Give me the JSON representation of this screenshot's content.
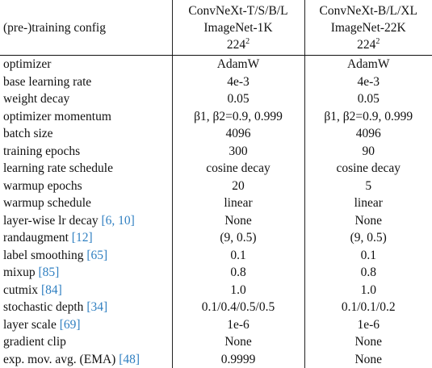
{
  "header": {
    "config_label": "(pre-)training config",
    "columns": [
      {
        "line1": "ConvNeXt-T/S/B/L",
        "line2": "ImageNet-1K",
        "res_base": "224",
        "res_exp": "2"
      },
      {
        "line1": "ConvNeXt-B/L/XL",
        "line2": "ImageNet-22K",
        "res_base": "224",
        "res_exp": "2"
      }
    ]
  },
  "rows": [
    {
      "name": "optimizer",
      "cite": "",
      "v1": "AdamW",
      "v2": "AdamW"
    },
    {
      "name": "base learning rate",
      "cite": "",
      "v1": "4e-3",
      "v2": "4e-3"
    },
    {
      "name": "weight decay",
      "cite": "",
      "v1": "0.05",
      "v2": "0.05"
    },
    {
      "name": "optimizer momentum",
      "cite": "",
      "v1": "β1, β2=0.9, 0.999",
      "v2": "β1, β2=0.9, 0.999"
    },
    {
      "name": "batch size",
      "cite": "",
      "v1": "4096",
      "v2": "4096"
    },
    {
      "name": "training epochs",
      "cite": "",
      "v1": "300",
      "v2": "90"
    },
    {
      "name": "learning rate schedule",
      "cite": "",
      "v1": "cosine decay",
      "v2": "cosine decay"
    },
    {
      "name": "warmup epochs",
      "cite": "",
      "v1": "20",
      "v2": "5"
    },
    {
      "name": "warmup schedule",
      "cite": "",
      "v1": "linear",
      "v2": "linear"
    },
    {
      "name": "layer-wise lr decay ",
      "cite": "[6, 10]",
      "v1": "None",
      "v2": "None"
    },
    {
      "name": "randaugment ",
      "cite": "[12]",
      "v1": "(9, 0.5)",
      "v2": "(9, 0.5)"
    },
    {
      "name": "label smoothing ",
      "cite": "[65]",
      "v1": "0.1",
      "v2": "0.1"
    },
    {
      "name": "mixup ",
      "cite": "[85]",
      "v1": "0.8",
      "v2": "0.8"
    },
    {
      "name": "cutmix ",
      "cite": "[84]",
      "v1": "1.0",
      "v2": "1.0"
    },
    {
      "name": "stochastic depth ",
      "cite": "[34]",
      "v1": "0.1/0.4/0.5/0.5",
      "v2": "0.1/0.1/0.2"
    },
    {
      "name": "layer scale ",
      "cite": "[69]",
      "v1": "1e-6",
      "v2": "1e-6"
    },
    {
      "name": "gradient clip",
      "cite": "",
      "v1": "None",
      "v2": "None"
    },
    {
      "name": "exp. mov. avg. (EMA) ",
      "cite": "[48]",
      "v1": "0.9999",
      "v2": "None"
    }
  ]
}
